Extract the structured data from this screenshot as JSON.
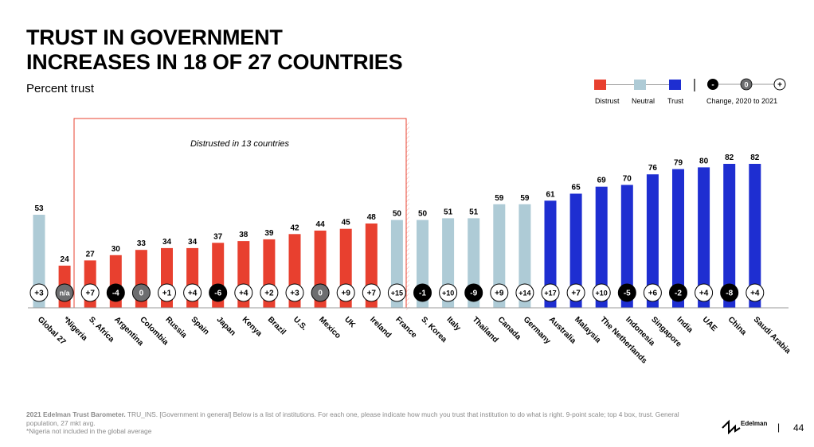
{
  "title_line1": "TRUST IN GOVERNMENT",
  "title_line2": "INCREASES IN 18 OF 27 COUNTRIES",
  "subtitle": "Percent trust",
  "legend": {
    "distrust": "Distrust",
    "neutral": "Neutral",
    "trust": "Trust",
    "change": "Change, 2020 to 2021",
    "minus_symbol": "-",
    "zero_symbol": "0",
    "plus_symbol": "+"
  },
  "colors": {
    "distrust": "#E8402F",
    "neutral": "#AECBD6",
    "trust": "#1E2ED1",
    "neg_change": "#000000",
    "zero_change": "#6D6E70"
  },
  "annotation": "Distrusted in 13 countries",
  "footer": {
    "source_bold": "2021 Edelman Trust Barometer.",
    "source_text": " TRU_INS. [Government in general] Below is a list of institutions. For each one, please indicate how much you trust that institution to do what is right. 9-point scale; top 4 box, trust. General population, 27 mkt avg.",
    "note": "*Nigeria not included in the global average"
  },
  "brand": "Edelman",
  "page_number": "44",
  "chart_data": {
    "type": "bar",
    "title": "Trust in government increases in 18 of 27 countries",
    "ylabel": "Percent trust",
    "ylim": [
      0,
      100
    ],
    "categories": [
      "Global 27",
      "*Nigeria",
      "S. Africa",
      "Argentina",
      "Colombia",
      "Russia",
      "Spain",
      "Japan",
      "Kenya",
      "Brazil",
      "U.S.",
      "Mexico",
      "UK",
      "Ireland",
      "France",
      "S. Korea",
      "Italy",
      "Thailand",
      "Canada",
      "Germany",
      "Australia",
      "Malaysia",
      "The Netherlands",
      "Indonesia",
      "Singapore",
      "India",
      "UAE",
      "China",
      "Saudi Arabia"
    ],
    "values": [
      53,
      24,
      27,
      30,
      33,
      34,
      34,
      37,
      38,
      39,
      42,
      44,
      45,
      48,
      50,
      50,
      51,
      51,
      59,
      59,
      61,
      65,
      69,
      70,
      76,
      79,
      80,
      82,
      82
    ],
    "levels": [
      "neutral",
      "distrust",
      "distrust",
      "distrust",
      "distrust",
      "distrust",
      "distrust",
      "distrust",
      "distrust",
      "distrust",
      "distrust",
      "distrust",
      "distrust",
      "distrust",
      "neutral",
      "neutral",
      "neutral",
      "neutral",
      "neutral",
      "neutral",
      "trust",
      "trust",
      "trust",
      "trust",
      "trust",
      "trust",
      "trust",
      "trust",
      "trust"
    ],
    "changes": [
      "+3",
      "n/a",
      "+7",
      "-4",
      "0",
      "+1",
      "+4",
      "-6",
      "+4",
      "+2",
      "+3",
      "0",
      "+9",
      "+7",
      "+15",
      "-1",
      "+10",
      "-9",
      "+9",
      "+14",
      "+17",
      "+7",
      "+10",
      "-5",
      "+6",
      "-2",
      "+4",
      "-8",
      "+4"
    ]
  }
}
